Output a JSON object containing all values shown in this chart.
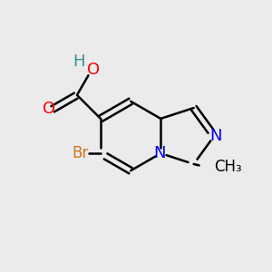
{
  "background_color": "#ebebeb",
  "bond_color": "#000000",
  "bond_width": 1.8,
  "atom_colors": {
    "N": "#0000ee",
    "O": "#ff0000",
    "H": "#3a9090",
    "Br": "#cc7722",
    "C": "#000000"
  },
  "font_size": 13,
  "font_size_small": 12
}
